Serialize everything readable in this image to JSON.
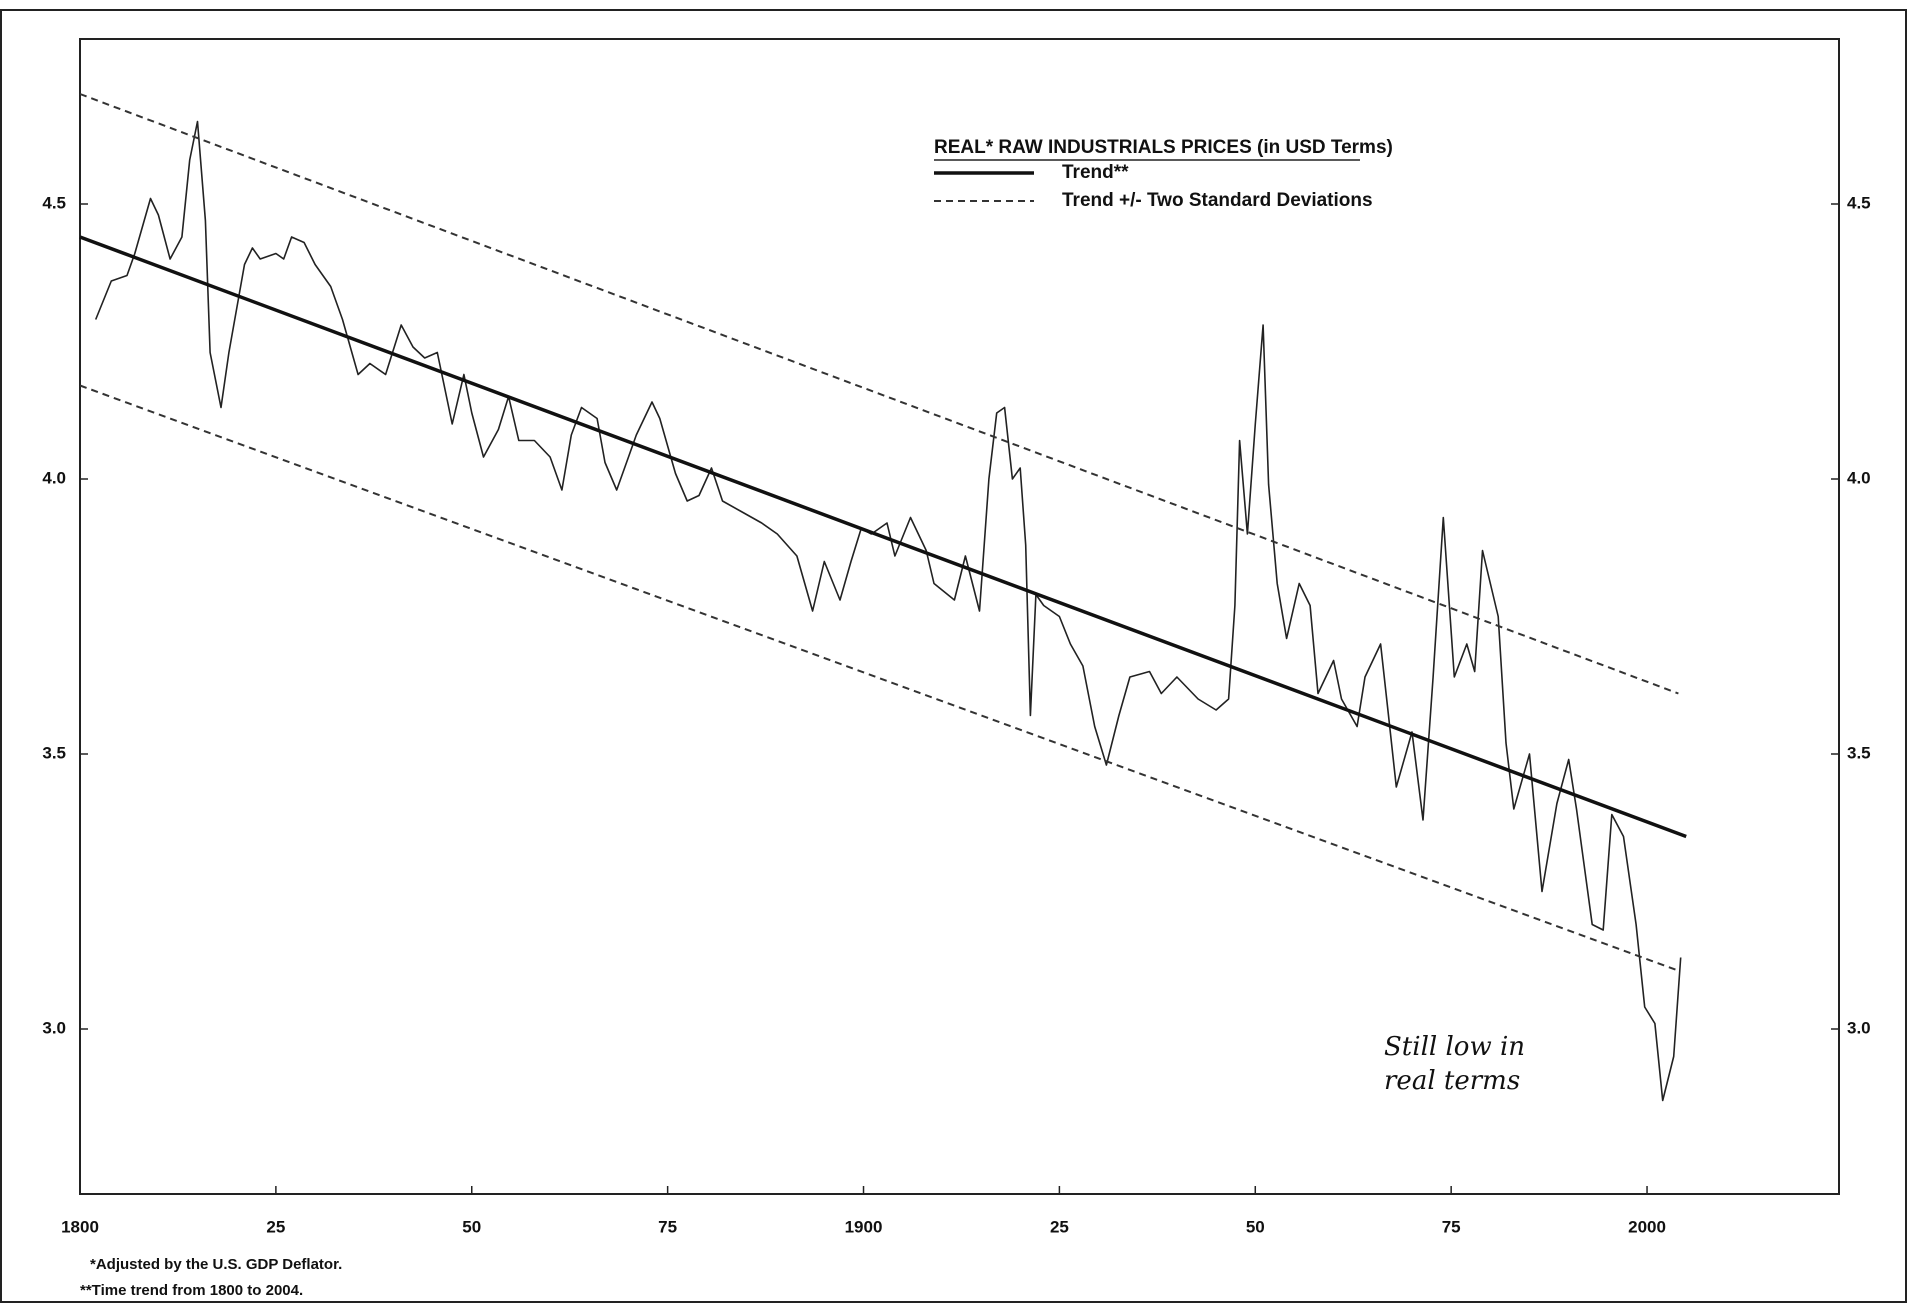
{
  "chart_data": {
    "type": "line",
    "title": "REAL* RAW INDUSTRIALS PRICES (in USD Terms)",
    "xlim": [
      1800,
      2024.5
    ],
    "ylim": [
      2.7,
      4.8
    ],
    "xticks": [
      1800,
      {
        "value": 1825,
        "label": "25"
      },
      {
        "value": 1850,
        "label": "50"
      },
      {
        "value": 1875,
        "label": "75"
      },
      1900,
      {
        "value": 1925,
        "label": "25"
      },
      {
        "value": 1950,
        "label": "50"
      },
      {
        "value": 1975,
        "label": "75"
      },
      2000
    ],
    "yticks": [
      {
        "value": 3.0,
        "label": "3.0"
      },
      {
        "value": 3.5,
        "label": "3.5"
      },
      {
        "value": 4.0,
        "label": "4.0"
      },
      {
        "value": 4.5,
        "label": "4.5"
      }
    ],
    "grid": false,
    "series": [
      {
        "color": "#222222",
        "style": "solid",
        "width": 1.6,
        "x": [
          1802,
          1804,
          1806,
          1807,
          1809,
          1810,
          1811.5,
          1813,
          1814,
          1815,
          1816,
          1816.6,
          1818,
          1819,
          1821,
          1822,
          1823,
          1825,
          1826,
          1827,
          1828.6,
          1830,
          1832,
          1833.5,
          1835.5,
          1837,
          1839,
          1841,
          1842.5,
          1844,
          1845.6,
          1847.5,
          1849,
          1850,
          1851.5,
          1853.4,
          1854.7,
          1856,
          1858,
          1860,
          1861.5,
          1862.7,
          1864,
          1866,
          1867,
          1868.5,
          1870,
          1871,
          1873,
          1874,
          1876,
          1877.5,
          1879,
          1880.6,
          1882,
          1884.5,
          1887,
          1889,
          1891.5,
          1893.5,
          1895,
          1897,
          1898.4,
          1899.7,
          1901,
          1903,
          1904,
          1906,
          1908,
          1909,
          1911.6,
          1913,
          1914.8,
          1916,
          1917,
          1918,
          1919,
          1920,
          1920.7,
          1921.3,
          1922,
          1923,
          1925,
          1926.4,
          1928,
          1929.5,
          1931,
          1932.6,
          1934,
          1936.5,
          1938,
          1940,
          1942.7,
          1945,
          1946.6,
          1947.4,
          1948,
          1949,
          1950,
          1951,
          1951.7,
          1952.8,
          1954,
          1955.6,
          1957,
          1958,
          1960,
          1961,
          1963,
          1964,
          1966,
          1967,
          1968,
          1970,
          1971.4,
          1972.7,
          1974,
          1975.4,
          1977,
          1978,
          1979,
          1981,
          1982,
          1983,
          1985,
          1986.6,
          1988.5,
          1990,
          1991,
          1993,
          1994.4,
          1995.5,
          1997,
          1998.6,
          1999.7,
          2001,
          2002,
          2003.4,
          2004.3
        ],
        "values": [
          4.29,
          4.36,
          4.37,
          4.41,
          4.51,
          4.48,
          4.4,
          4.44,
          4.58,
          4.65,
          4.47,
          4.23,
          4.13,
          4.23,
          4.39,
          4.42,
          4.4,
          4.41,
          4.4,
          4.44,
          4.43,
          4.39,
          4.35,
          4.29,
          4.19,
          4.21,
          4.19,
          4.28,
          4.24,
          4.22,
          4.23,
          4.1,
          4.19,
          4.12,
          4.04,
          4.09,
          4.15,
          4.07,
          4.07,
          4.04,
          3.98,
          4.08,
          4.13,
          4.11,
          4.03,
          3.98,
          4.04,
          4.08,
          4.14,
          4.11,
          4.01,
          3.96,
          3.97,
          4.02,
          3.96,
          3.94,
          3.92,
          3.9,
          3.86,
          3.76,
          3.85,
          3.78,
          3.85,
          3.91,
          3.9,
          3.92,
          3.86,
          3.93,
          3.87,
          3.81,
          3.78,
          3.86,
          3.76,
          4.0,
          4.12,
          4.13,
          4.0,
          4.02,
          3.88,
          3.57,
          3.79,
          3.77,
          3.75,
          3.7,
          3.66,
          3.55,
          3.48,
          3.57,
          3.64,
          3.65,
          3.61,
          3.64,
          3.6,
          3.58,
          3.6,
          3.77,
          4.07,
          3.9,
          4.1,
          4.28,
          3.99,
          3.81,
          3.71,
          3.81,
          3.77,
          3.61,
          3.67,
          3.6,
          3.55,
          3.64,
          3.7,
          3.57,
          3.44,
          3.54,
          3.38,
          3.64,
          3.93,
          3.64,
          3.7,
          3.65,
          3.87,
          3.75,
          3.52,
          3.4,
          3.5,
          3.25,
          3.41,
          3.49,
          3.4,
          3.19,
          3.18,
          3.39,
          3.35,
          3.19,
          3.04,
          3.01,
          2.87,
          2.95,
          3.13
        ]
      },
      {
        "name": "Trend**",
        "color": "#111111",
        "style": "solid",
        "width": 3.5,
        "x": [
          1800,
          2005
        ],
        "values": [
          4.44,
          3.35
        ]
      },
      {
        "name": "Trend +/- Two Standard Deviations",
        "color": "#333333",
        "style": "dashed",
        "width": 2,
        "x": [
          1800,
          2004
        ],
        "values": [
          4.7,
          3.61
        ]
      },
      {
        "color": "#333333",
        "style": "dashed",
        "width": 2,
        "x": [
          1800,
          2004
        ],
        "values": [
          4.17,
          3.106
        ]
      }
    ],
    "annotation": [
      "Still low in",
      "real terms"
    ],
    "footnotes": [
      "*Adjusted by the U.S. GDP Deflator.",
      "**Time trend from 1800 to 2004."
    ]
  }
}
